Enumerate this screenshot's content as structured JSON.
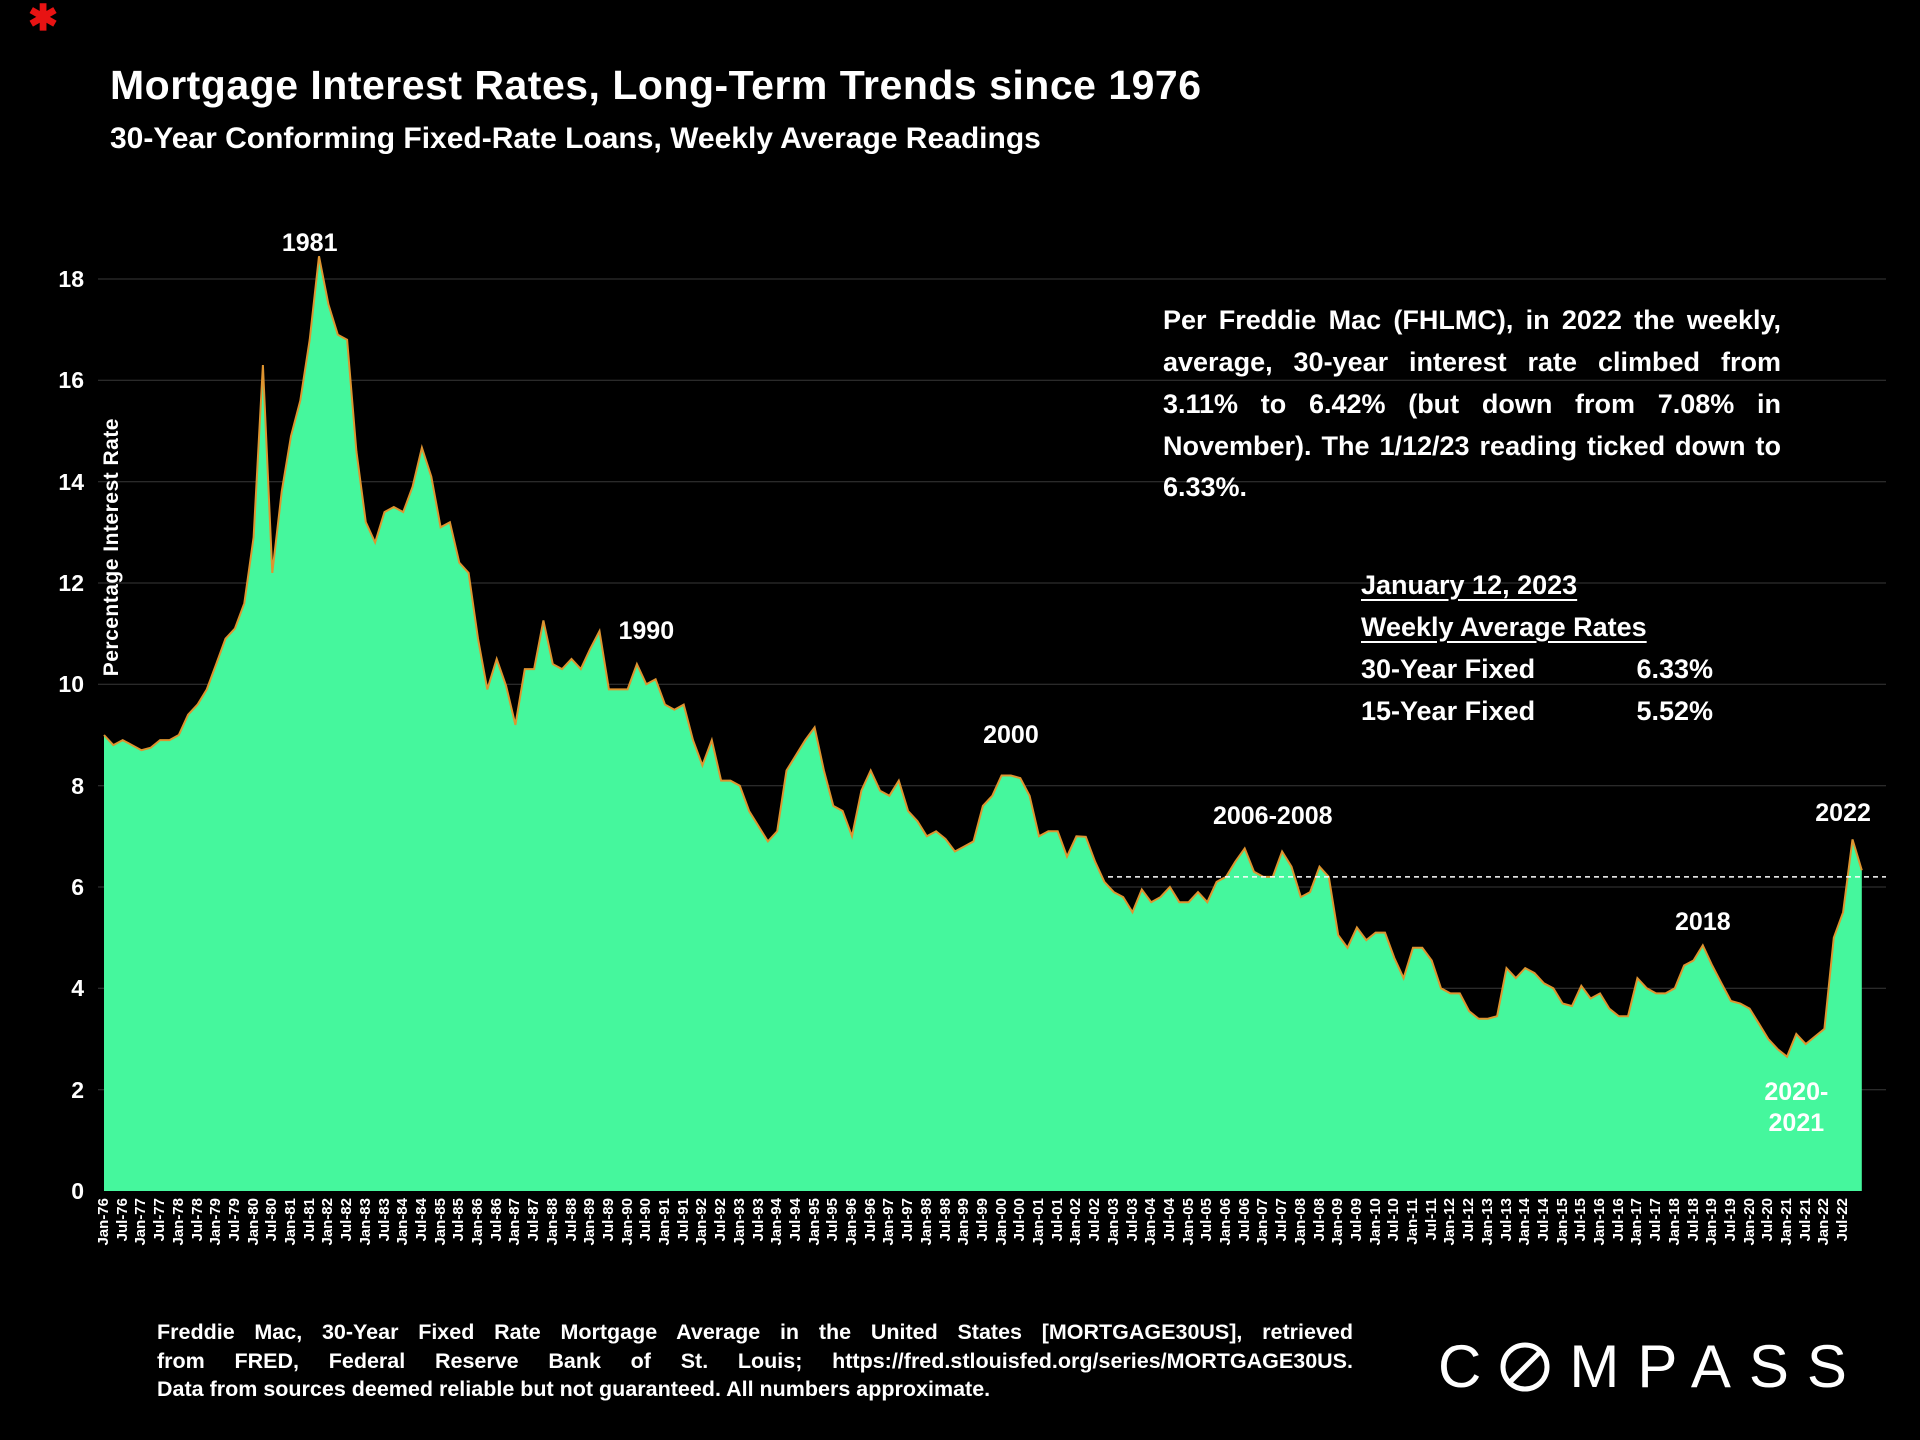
{
  "page": {
    "background": "#000000",
    "red_mark": "✱"
  },
  "header": {
    "title": "Mortgage Interest Rates, Long-Term Trends since 1976",
    "subtitle": "30-Year Conforming Fixed-Rate Loans, Weekly Average Readings"
  },
  "commentary": {
    "paragraph": "Per Freddie Mac (FHLMC), in 2022 the weekly, average, 30-year interest rate climbed from 3.11% to 6.42% (but down from 7.08% in November). The 1/12/23 reading ticked down to 6.33%."
  },
  "rates_panel": {
    "heading_line1": "January 12, 2023",
    "heading_line2": "Weekly Average Rates",
    "rows": [
      {
        "label": "30-Year Fixed",
        "value": "6.33%"
      },
      {
        "label": "15-Year Fixed",
        "value": "5.52%"
      }
    ]
  },
  "footer": {
    "source_lines": [
      "Freddie Mac, 30-Year Fixed Rate Mortgage Average in the United States [MORTGAGE30US], retrieved",
      "from FRED, Federal Reserve Bank of St. Louis; https://fred.stlouisfed.org/series/MORTGAGE30US.",
      "Data from sources deemed reliable but not guaranteed. All numbers approximate."
    ],
    "brand": "COMPASS",
    "brand_display": {
      "before_o": "C",
      "after_o": "MPASS"
    }
  },
  "chart_data": {
    "type": "area",
    "title": "Mortgage Interest Rates, Long-Term Trends since 1976",
    "subtitle": "30-Year Conforming Fixed-Rate Loans, Weekly Average Readings",
    "xlabel": "",
    "ylabel": "Percentage Interest  Rate",
    "ylim": [
      0,
      18.6
    ],
    "y_ticks": [
      0,
      2,
      4,
      6,
      8,
      10,
      12,
      14,
      16,
      18
    ],
    "grid": "faint horizontal gridlines at each y tick",
    "legend": "none",
    "x_range": "Jan-1976 through Jan-2023, quarterly estimates of weekly readings",
    "points_per_x_tick": 2,
    "x_tick_labels": [
      "Jan-76",
      "Jul-76",
      "Jan-77",
      "Jul-77",
      "Jan-78",
      "Jul-78",
      "Jan-79",
      "Jul-79",
      "Jan-80",
      "Jul-80",
      "Jan-81",
      "Jul-81",
      "Jan-82",
      "Jul-82",
      "Jan-83",
      "Jul-83",
      "Jan-84",
      "Jul-84",
      "Jan-85",
      "Jul-85",
      "Jan-86",
      "Jul-86",
      "Jan-87",
      "Jul-87",
      "Jan-88",
      "Jul-88",
      "Jan-89",
      "Jul-89",
      "Jan-90",
      "Jul-90",
      "Jan-91",
      "Jul-91",
      "Jan-92",
      "Jul-92",
      "Jan-93",
      "Jul-93",
      "Jan-94",
      "Jul-94",
      "Jan-95",
      "Jul-95",
      "Jan-96",
      "Jul-96",
      "Jan-97",
      "Jul-97",
      "Jan-98",
      "Jul-98",
      "Jan-99",
      "Jul-99",
      "Jan-00",
      "Jul-00",
      "Jan-01",
      "Jul-01",
      "Jan-02",
      "Jul-02",
      "Jan-03",
      "Jul-03",
      "Jan-04",
      "Jul-04",
      "Jan-05",
      "Jul-05",
      "Jan-06",
      "Jul-06",
      "Jan-07",
      "Jul-07",
      "Jan-08",
      "Jul-08",
      "Jan-09",
      "Jul-09",
      "Jan-10",
      "Jul-10",
      "Jan-11",
      "Jul-11",
      "Jan-12",
      "Jul-12",
      "Jan-13",
      "Jul-13",
      "Jan-14",
      "Jul-14",
      "Jan-15",
      "Jul-15",
      "Jan-16",
      "Jul-16",
      "Jan-17",
      "Jul-17",
      "Jan-18",
      "Jul-18",
      "Jan-19",
      "Jul-19",
      "Jan-20",
      "Jul-20",
      "Jan-21",
      "Jul-21",
      "Jan-22",
      "Jul-22"
    ],
    "series": [
      {
        "name": "30-Year Conforming Fixed-Rate Mortgage, Weekly Average (%)",
        "fill_color": "#45f79d",
        "line_color": "#de9430",
        "values": [
          9.0,
          8.8,
          8.9,
          8.8,
          8.7,
          8.75,
          8.9,
          8.9,
          9.0,
          9.4,
          9.6,
          9.9,
          10.4,
          10.9,
          11.1,
          11.6,
          12.9,
          16.3,
          12.2,
          13.8,
          14.9,
          15.6,
          16.8,
          18.45,
          17.5,
          16.9,
          16.8,
          14.6,
          13.2,
          12.8,
          13.4,
          13.5,
          13.4,
          13.9,
          14.67,
          14.1,
          13.1,
          13.2,
          12.4,
          12.2,
          10.9,
          9.9,
          10.5,
          9.97,
          9.2,
          10.3,
          10.3,
          11.26,
          10.4,
          10.3,
          10.5,
          10.3,
          10.7,
          11.05,
          9.9,
          9.9,
          9.9,
          10.4,
          10.0,
          10.1,
          9.6,
          9.5,
          9.6,
          8.9,
          8.4,
          8.9,
          8.1,
          8.1,
          8.0,
          7.5,
          7.2,
          6.9,
          7.1,
          8.3,
          8.6,
          8.9,
          9.15,
          8.3,
          7.6,
          7.5,
          7.0,
          7.9,
          8.3,
          7.9,
          7.8,
          8.1,
          7.5,
          7.3,
          7.0,
          7.1,
          6.95,
          6.7,
          6.8,
          6.9,
          7.6,
          7.8,
          8.2,
          8.2,
          8.15,
          7.8,
          7.0,
          7.1,
          7.1,
          6.6,
          7.0,
          6.99,
          6.5,
          6.1,
          5.9,
          5.8,
          5.5,
          5.95,
          5.7,
          5.8,
          6.0,
          5.7,
          5.7,
          5.9,
          5.7,
          6.1,
          6.2,
          6.5,
          6.76,
          6.3,
          6.2,
          6.2,
          6.7,
          6.4,
          5.8,
          5.9,
          6.4,
          6.2,
          5.05,
          4.8,
          5.2,
          4.95,
          5.1,
          5.1,
          4.6,
          4.2,
          4.8,
          4.8,
          4.55,
          4.0,
          3.9,
          3.9,
          3.55,
          3.4,
          3.4,
          3.45,
          4.4,
          4.2,
          4.4,
          4.3,
          4.1,
          4.0,
          3.7,
          3.65,
          4.05,
          3.8,
          3.9,
          3.6,
          3.45,
          3.45,
          4.2,
          4.0,
          3.9,
          3.9,
          4.0,
          4.45,
          4.55,
          4.85,
          4.45,
          4.1,
          3.75,
          3.7,
          3.6,
          3.3,
          3.0,
          2.8,
          2.65,
          3.1,
          2.9,
          3.05,
          3.2,
          5.0,
          5.5,
          6.94,
          6.33
        ]
      }
    ],
    "reference_line": {
      "value": 6.2,
      "color": "#ffffff",
      "style": "dashed",
      "start_fraction": 0.565
    },
    "annotations": [
      {
        "text": "1981",
        "x_quarter": 22,
        "y_value": 19.0
      },
      {
        "text": "1990",
        "x_quarter": 58,
        "y_value": 11.35
      },
      {
        "text": "2000",
        "x_quarter": 97,
        "y_value": 9.3
      },
      {
        "text": "2006-2008",
        "x_quarter": 125,
        "y_value": 7.7
      },
      {
        "text": "2018",
        "x_quarter": 171,
        "y_value": 5.6
      },
      {
        "text": "2020-\n2021",
        "x_quarter": 181,
        "y_value": 2.25
      },
      {
        "text": "2022",
        "x_quarter": 186,
        "y_value": 7.75
      }
    ]
  }
}
